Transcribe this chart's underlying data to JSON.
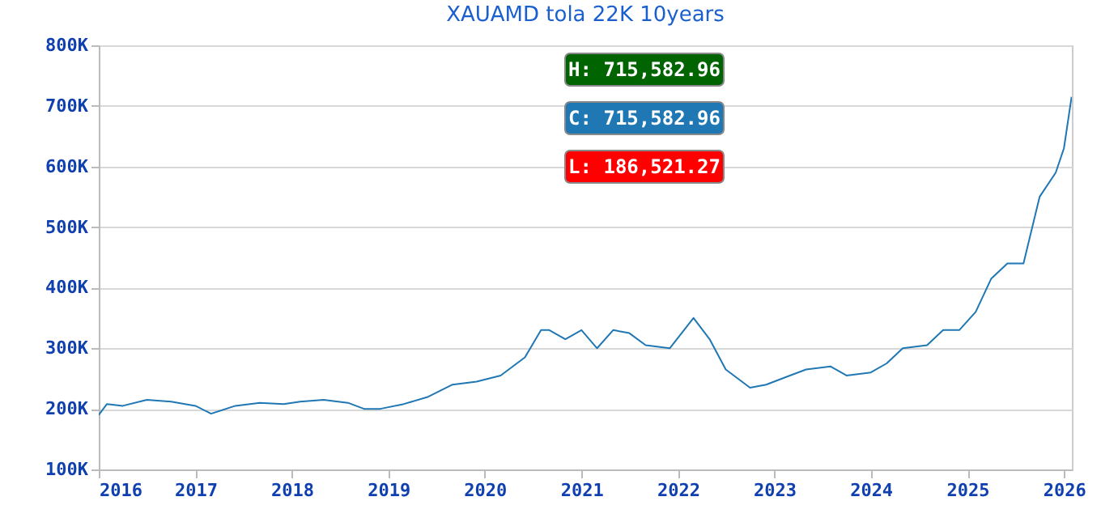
{
  "chart_data": {
    "type": "line",
    "title": "XAUAMD tola 22K 10years",
    "annotations": [
      "H: 715,582.96",
      "C: 715,582.96",
      "L: 186,521.27"
    ],
    "x": [
      "2016-01",
      "2016-02",
      "2016-04",
      "2016-07",
      "2016-10",
      "2017-01",
      "2017-03",
      "2017-06",
      "2017-09",
      "2017-12",
      "2018-02",
      "2018-05",
      "2018-08",
      "2018-10",
      "2018-12",
      "2019-03",
      "2019-06",
      "2019-09",
      "2019-12",
      "2020-03",
      "2020-06",
      "2020-08",
      "2020-09",
      "2020-11",
      "2021-01",
      "2021-03",
      "2021-05",
      "2021-07",
      "2021-09",
      "2021-12",
      "2022-03",
      "2022-05",
      "2022-07",
      "2022-10",
      "2022-12",
      "2023-03",
      "2023-05",
      "2023-08",
      "2023-10",
      "2024-01",
      "2024-03",
      "2024-05",
      "2024-08",
      "2024-10",
      "2024-12",
      "2025-02",
      "2025-04",
      "2025-06",
      "2025-08",
      "2025-10",
      "2025-12",
      "2026-01",
      "2026-01-30"
    ],
    "series": [
      {
        "color": "#1f77b4",
        "values": [
          190000,
          208000,
          205000,
          215000,
          212000,
          205000,
          192000,
          205000,
          210000,
          208000,
          212000,
          215000,
          210000,
          200000,
          200000,
          208000,
          220000,
          240000,
          245000,
          255000,
          285000,
          330000,
          330000,
          315000,
          330000,
          300000,
          330000,
          325000,
          305000,
          300000,
          350000,
          315000,
          265000,
          235000,
          240000,
          255000,
          265000,
          270000,
          255000,
          260000,
          275000,
          300000,
          305000,
          330000,
          330000,
          360000,
          415000,
          440000,
          440000,
          550000,
          590000,
          630000,
          715000
        ]
      }
    ],
    "xlim": [
      "2016",
      "2026-01-31"
    ],
    "xticks": [
      "2016",
      "2017",
      "2018",
      "2019",
      "2020",
      "2021",
      "2022",
      "2023",
      "2024",
      "2025",
      "2026"
    ],
    "ylim": [
      100000,
      800000
    ],
    "yticks": [
      {
        "value": 100000,
        "label": "100K"
      },
      {
        "value": 200000,
        "label": "200K"
      },
      {
        "value": 300000,
        "label": "300K"
      },
      {
        "value": 400000,
        "label": "400K"
      },
      {
        "value": 500000,
        "label": "500K"
      },
      {
        "value": 600000,
        "label": "600K"
      },
      {
        "value": 700000,
        "label": "700K"
      },
      {
        "value": 800000,
        "label": "800K"
      }
    ],
    "grid": "y",
    "line_style": "solid"
  }
}
